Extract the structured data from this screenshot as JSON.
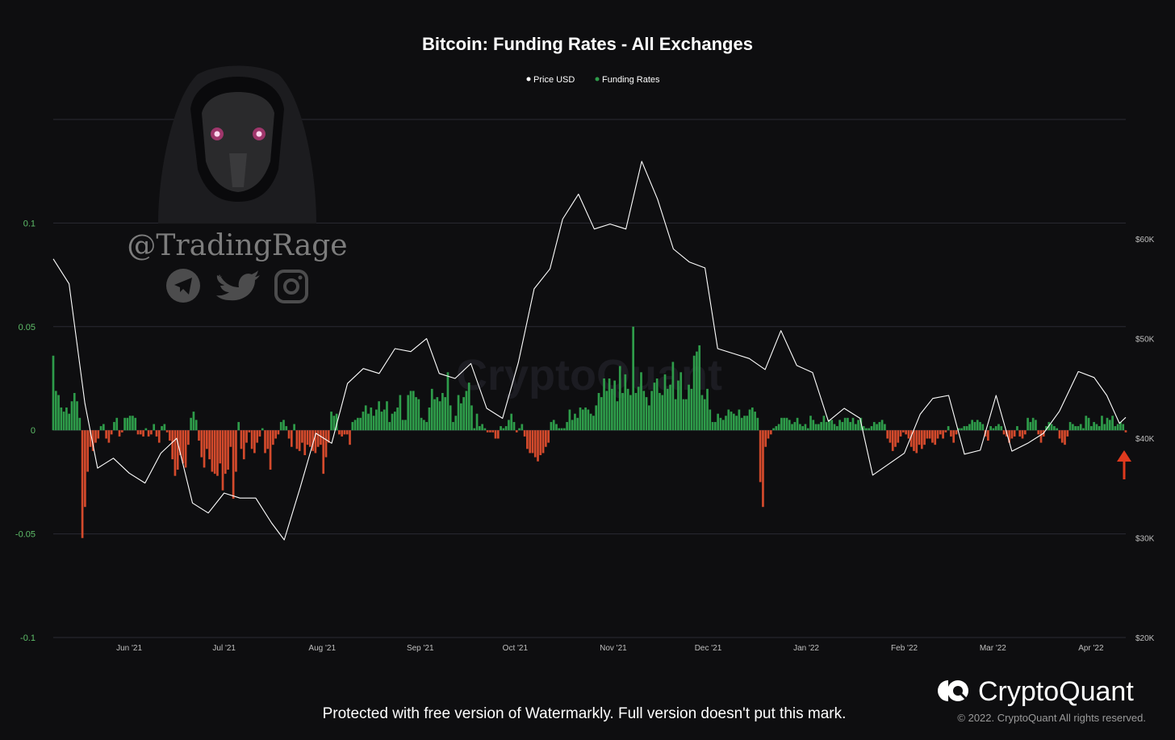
{
  "title": "Bitcoin: Funding Rates - All Exchanges",
  "legend": [
    {
      "label": "Price USD",
      "color": "#ffffff"
    },
    {
      "label": "Funding Rates",
      "color": "#2e9c4a"
    }
  ],
  "watermark_text": "CryptoQuant",
  "overlay": {
    "handle": "@TradingRage"
  },
  "brand": {
    "name": "CryptoQuant",
    "copyright": "© 2022. CryptoQuant All rights reserved."
  },
  "notice": "Protected with free version of Watermarkly. Full version doesn't put this mark.",
  "colors": {
    "positive": "#2e9c4a",
    "negative": "#d44a2c",
    "price_line": "#ffffff",
    "grid": "#2a2a33",
    "arrow": "#e03a1e"
  },
  "chart_data": {
    "type": "bar",
    "title": "Bitcoin: Funding Rates - All Exchanges",
    "x_ticks": [
      "Jun '21",
      "Jul '21",
      "Aug '21",
      "Sep '21",
      "Oct '21",
      "Nov '21",
      "Dec '21",
      "Jan '22",
      "Feb '22",
      "Mar '22",
      "Apr '22"
    ],
    "y_left_ticks": [
      "0.1",
      "0.05",
      "0",
      "-0.05",
      "-0.1"
    ],
    "y_left_range": [
      -0.1,
      0.15
    ],
    "y_right_ticks": [
      "$60K",
      "$50K",
      "$40K",
      "$30K",
      "$20K"
    ],
    "y_right_range": [
      20000,
      72000
    ],
    "grid": true,
    "legend_position": "top-center",
    "series": [
      {
        "name": "Price USD",
        "type": "line",
        "x": [
          "2021-05-08",
          "2021-05-13",
          "2021-05-18",
          "2021-05-22",
          "2021-05-27",
          "2021-06-01",
          "2021-06-06",
          "2021-06-11",
          "2021-06-16",
          "2021-06-21",
          "2021-06-26",
          "2021-07-01",
          "2021-07-06",
          "2021-07-11",
          "2021-07-16",
          "2021-07-20",
          "2021-07-25",
          "2021-07-30",
          "2021-08-04",
          "2021-08-09",
          "2021-08-14",
          "2021-08-19",
          "2021-08-24",
          "2021-08-29",
          "2021-09-03",
          "2021-09-07",
          "2021-09-12",
          "2021-09-17",
          "2021-09-22",
          "2021-09-27",
          "2021-10-02",
          "2021-10-07",
          "2021-10-12",
          "2021-10-16",
          "2021-10-21",
          "2021-10-26",
          "2021-10-31",
          "2021-11-05",
          "2021-11-10",
          "2021-11-15",
          "2021-11-20",
          "2021-11-25",
          "2021-11-30",
          "2021-12-04",
          "2021-12-09",
          "2021-12-14",
          "2021-12-19",
          "2021-12-24",
          "2021-12-29",
          "2022-01-03",
          "2022-01-08",
          "2022-01-13",
          "2022-01-18",
          "2022-01-22",
          "2022-01-27",
          "2022-02-01",
          "2022-02-06",
          "2022-02-10",
          "2022-02-15",
          "2022-02-20",
          "2022-02-25",
          "2022-03-02",
          "2022-03-07",
          "2022-03-12",
          "2022-03-17",
          "2022-03-22",
          "2022-03-28",
          "2022-04-02",
          "2022-04-06",
          "2022-04-10",
          "2022-04-12"
        ],
        "values": [
          58000,
          55500,
          43500,
          37000,
          38000,
          36500,
          35500,
          38500,
          40000,
          33500,
          32500,
          34500,
          34000,
          34000,
          31500,
          29800,
          35000,
          40500,
          39500,
          45500,
          47000,
          46500,
          49000,
          48700,
          50000,
          46500,
          46000,
          47500,
          43000,
          42000,
          47600,
          55000,
          57000,
          62000,
          64500,
          61000,
          61500,
          61000,
          67800,
          64000,
          59000,
          57700,
          57100,
          49000,
          48500,
          48000,
          46900,
          50800,
          47300,
          46600,
          41700,
          43000,
          42000,
          36300,
          37400,
          38500,
          42400,
          44000,
          44300,
          38400,
          38800,
          44300,
          38700,
          39500,
          40500,
          42700,
          46700,
          46100,
          44300,
          41500,
          42100
        ]
      },
      {
        "name": "Funding Rates",
        "type": "bar",
        "x_range": [
          "2021-05-08",
          "2022-04-12"
        ],
        "values": [
          0.036,
          0.019,
          0.017,
          0.011,
          0.009,
          0.011,
          0.008,
          0.014,
          0.018,
          0.014,
          0.006,
          -0.052,
          -0.037,
          -0.02,
          -0.008,
          -0.01,
          -0.006,
          -0.004,
          0.002,
          0.003,
          -0.004,
          -0.006,
          -0.002,
          0.004,
          0.006,
          -0.003,
          -0.001,
          0.006,
          0.006,
          0.007,
          0.007,
          0.006,
          -0.002,
          -0.002,
          -0.003,
          0.001,
          -0.003,
          -0.002,
          0.003,
          -0.003,
          -0.006,
          0.002,
          0.003,
          -0.001,
          -0.005,
          -0.014,
          -0.022,
          -0.019,
          -0.012,
          -0.016,
          -0.018,
          -0.007,
          0.006,
          0.009,
          0.005,
          -0.005,
          -0.013,
          -0.018,
          -0.009,
          -0.014,
          -0.02,
          -0.021,
          -0.022,
          -0.016,
          -0.029,
          -0.021,
          -0.019,
          -0.008,
          -0.033,
          -0.02,
          0.004,
          -0.009,
          -0.014,
          -0.006,
          -0.001,
          -0.009,
          -0.011,
          -0.006,
          -0.003,
          0.001,
          -0.011,
          -0.009,
          -0.019,
          -0.007,
          -0.004,
          -0.002,
          0.004,
          0.005,
          0.002,
          -0.004,
          -0.008,
          0.003,
          -0.009,
          -0.01,
          -0.006,
          -0.012,
          -0.007,
          -0.008,
          -0.01,
          -0.011,
          -0.008,
          -0.007,
          -0.021,
          -0.013,
          -0.006,
          0.009,
          0.007,
          0.008,
          -0.002,
          -0.003,
          -0.002,
          -0.002,
          -0.007,
          0.004,
          0.005,
          0.006,
          0.006,
          0.009,
          0.012,
          0.008,
          0.011,
          0.007,
          0.01,
          0.014,
          0.009,
          0.01,
          0.014,
          0.004,
          0.008,
          0.009,
          0.011,
          0.017,
          0.005,
          0.005,
          0.017,
          0.019,
          0.019,
          0.016,
          0.015,
          0.006,
          0.005,
          0.004,
          0.011,
          0.02,
          0.015,
          0.016,
          0.014,
          0.018,
          0.016,
          0.028,
          0.012,
          0.004,
          0.007,
          0.017,
          0.013,
          0.016,
          0.019,
          0.023,
          0.012,
          0.001,
          0.008,
          0.002,
          0.003,
          0.001,
          -0.001,
          -0.001,
          -0.001,
          -0.004,
          -0.004,
          0.002,
          0.001,
          0.002,
          0.005,
          0.008,
          0.004,
          -0.001,
          0.001,
          0.003,
          -0.003,
          -0.009,
          -0.011,
          -0.011,
          -0.013,
          -0.015,
          -0.012,
          -0.011,
          -0.008,
          -0.006,
          0.004,
          0.005,
          0.003,
          0.001,
          0.001,
          0.001,
          0.004,
          0.01,
          0.005,
          0.008,
          0.006,
          0.011,
          0.01,
          0.011,
          0.01,
          0.008,
          0.007,
          0.012,
          0.018,
          0.016,
          0.025,
          0.019,
          0.025,
          0.02,
          0.024,
          0.014,
          0.031,
          0.018,
          0.027,
          0.02,
          0.017,
          0.05,
          0.018,
          0.021,
          0.028,
          0.019,
          0.016,
          0.012,
          0.019,
          0.023,
          0.025,
          0.018,
          0.017,
          0.027,
          0.02,
          0.022,
          0.033,
          0.015,
          0.024,
          0.028,
          0.015,
          0.015,
          0.022,
          0.02,
          0.036,
          0.038,
          0.041,
          0.017,
          0.015,
          0.02,
          0.01,
          0.004,
          0.004,
          0.008,
          0.006,
          0.005,
          0.007,
          0.01,
          0.009,
          0.008,
          0.007,
          0.01,
          0.006,
          0.007,
          0.007,
          0.01,
          0.011,
          0.009,
          0.006,
          -0.025,
          -0.037,
          -0.008,
          -0.004,
          -0.002,
          0.001,
          0.002,
          0.003,
          0.006,
          0.006,
          0.006,
          0.005,
          0.003,
          0.004,
          0.006,
          0.003,
          0.002,
          0.003,
          0.001,
          0.007,
          0.005,
          0.003,
          0.003,
          0.004,
          0.007,
          0.004,
          0.005,
          0.005,
          0.003,
          0.002,
          0.005,
          0.004,
          0.006,
          0.006,
          0.004,
          0.006,
          0.003,
          0.005,
          0.006,
          0.002,
          0.001,
          0.001,
          0.002,
          0.004,
          0.003,
          0.004,
          0.005,
          0.003,
          -0.004,
          -0.006,
          -0.01,
          -0.008,
          -0.006,
          -0.003,
          -0.001,
          -0.002,
          -0.004,
          -0.008,
          -0.01,
          -0.011,
          -0.007,
          -0.009,
          -0.007,
          -0.004,
          -0.004,
          -0.006,
          -0.007,
          -0.004,
          -0.002,
          -0.004,
          -0.001,
          0.002,
          -0.003,
          -0.006,
          -0.002,
          0.001,
          0.001,
          0.002,
          0.002,
          0.003,
          0.005,
          0.004,
          0.005,
          0.004,
          0.003,
          -0.003,
          -0.005,
          0.002,
          0.001,
          0.002,
          0.003,
          0.002,
          -0.002,
          -0.003,
          -0.006,
          -0.004,
          -0.003,
          0.002,
          -0.003,
          -0.004,
          -0.002,
          0.006,
          0.004,
          0.006,
          0.005,
          -0.002,
          -0.006,
          -0.003,
          0.002,
          0.004,
          0.003,
          0.002,
          0.001,
          -0.004,
          -0.006,
          -0.007,
          -0.003,
          0.004,
          0.003,
          0.002,
          0.002,
          0.003,
          0.001,
          0.007,
          0.006,
          0.002,
          0.004,
          0.003,
          0.002,
          0.007,
          0.003,
          0.006,
          0.005,
          0.007,
          0.002,
          0.003,
          0.004,
          0.003,
          -0.001
        ]
      }
    ],
    "annotations": [
      "red up arrow at latest bar"
    ]
  }
}
